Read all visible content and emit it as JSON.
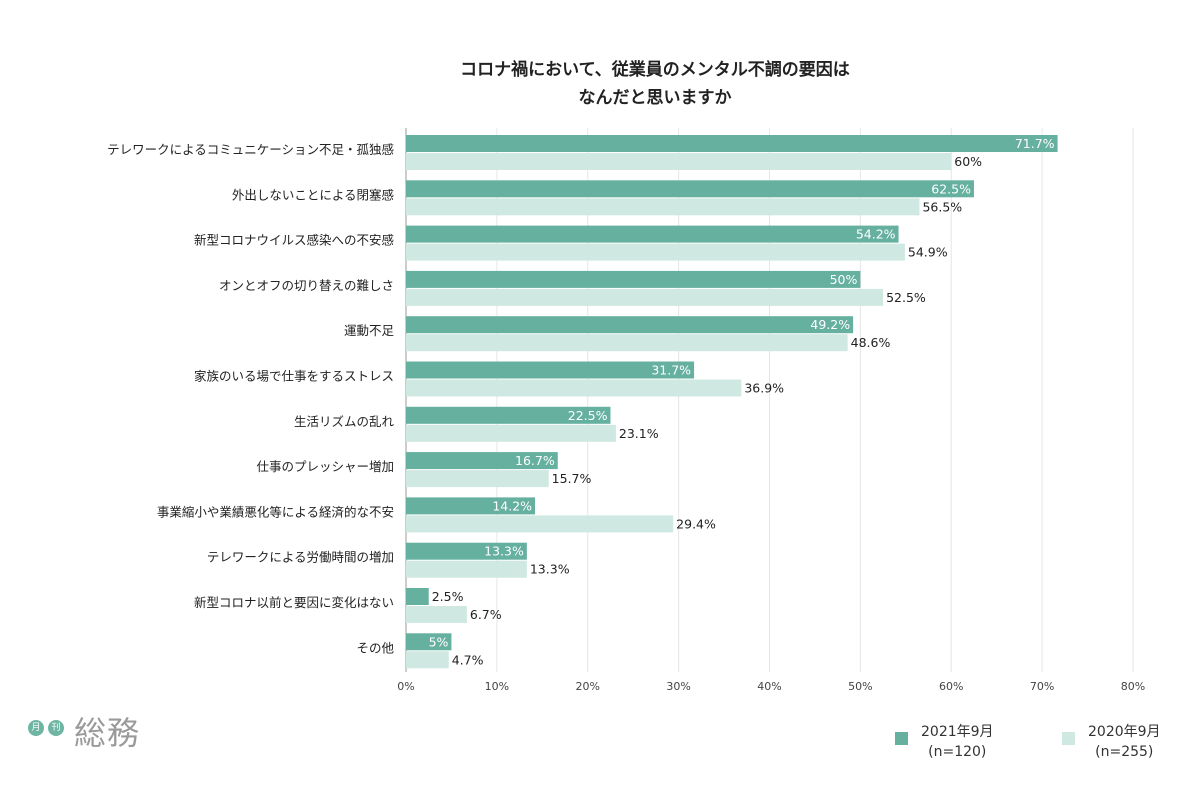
{
  "chart_data": {
    "type": "bar",
    "orientation": "horizontal",
    "title": [
      "コロナ禍において、従業員のメンタル不調の要因は",
      "なんだと思いますか"
    ],
    "categories": [
      "テレワークによるコミュニケーション不足・孤独感",
      "外出しないことによる閉塞感",
      "新型コロナウイルス感染への不安感",
      "オンとオフの切り替えの難しさ",
      "運動不足",
      "家族のいる場で仕事をするストレス",
      "生活リズムの乱れ",
      "仕事のプレッシャー増加",
      "事業縮小や業績悪化等による経済的な不安",
      "テレワークによる労働時間の増加",
      "新型コロナ以前と要因に変化はない",
      "その他"
    ],
    "series": [
      {
        "name": "2021年9月",
        "note": "(n=120)",
        "color": "#66b0a0",
        "values": [
          71.7,
          62.5,
          54.2,
          50,
          49.2,
          31.7,
          22.5,
          16.7,
          14.2,
          13.3,
          2.5,
          5
        ],
        "labels": [
          "71.7%",
          "62.5%",
          "54.2%",
          "50%",
          "49.2%",
          "31.7%",
          "22.5%",
          "16.7%",
          "14.2%",
          "13.3%",
          "2.5%",
          "5%"
        ]
      },
      {
        "name": "2020年9月",
        "note": "(n=255)",
        "color": "#cfe8e1",
        "values": [
          60,
          56.5,
          54.9,
          52.5,
          48.6,
          36.9,
          23.1,
          15.7,
          29.4,
          13.3,
          6.7,
          4.7
        ],
        "labels": [
          "60%",
          "56.5%",
          "54.9%",
          "52.5%",
          "48.6%",
          "36.9%",
          "23.1%",
          "15.7%",
          "29.4%",
          "13.3%",
          "6.7%",
          "4.7%"
        ]
      }
    ],
    "xlim": [
      0,
      80
    ],
    "xticks": [
      "0%",
      "10%",
      "20%",
      "30%",
      "40%",
      "50%",
      "60%",
      "70%",
      "80%"
    ],
    "grid": true,
    "legend": "bottom-right"
  },
  "logo": {
    "small_left": "月",
    "small_right": "刊",
    "word": "総務"
  }
}
